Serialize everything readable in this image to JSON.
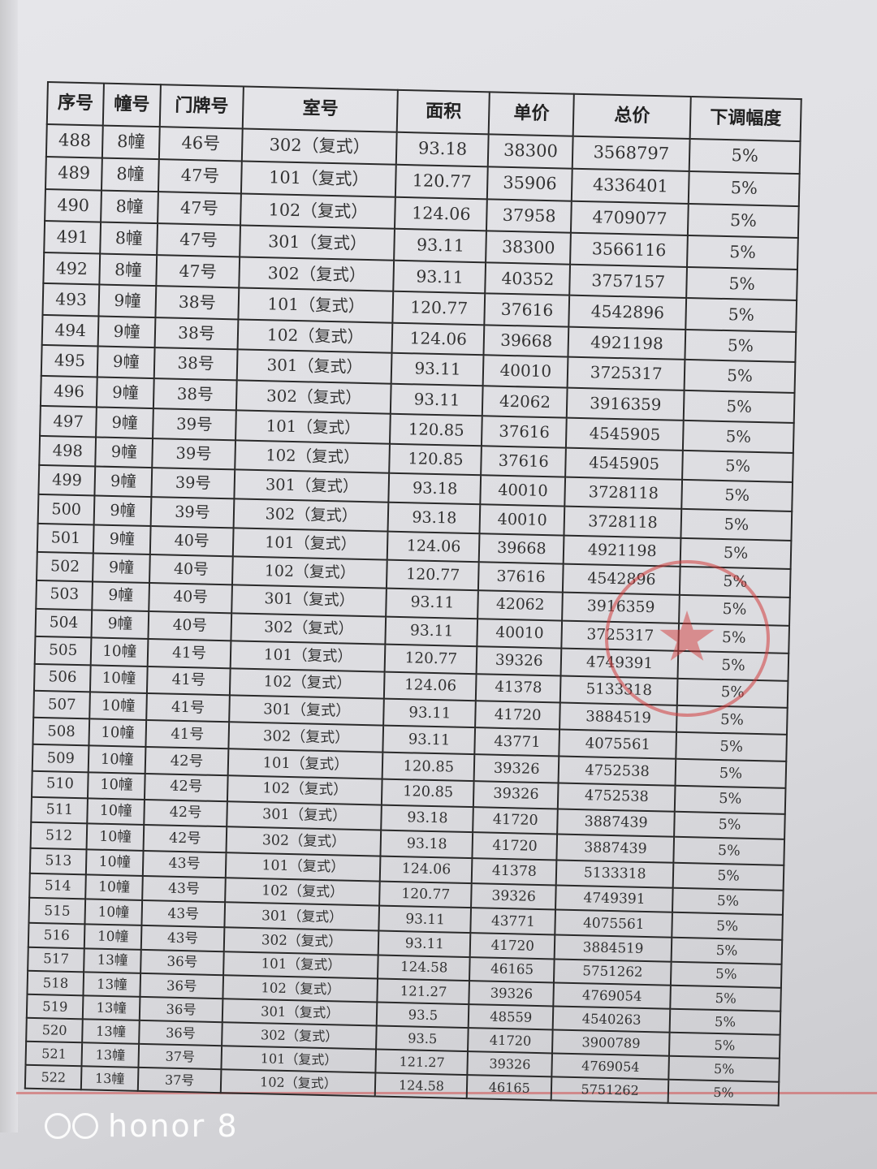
{
  "table": {
    "headers": [
      "序号",
      "幢号",
      "门牌号",
      "室号",
      "面积",
      "单价",
      "总价",
      "下调幅度"
    ],
    "rows": [
      [
        "488",
        "8幢",
        "46号",
        "302（复式）",
        "93.18",
        "38300",
        "3568797",
        "5%"
      ],
      [
        "489",
        "8幢",
        "47号",
        "101（复式）",
        "120.77",
        "35906",
        "4336401",
        "5%"
      ],
      [
        "490",
        "8幢",
        "47号",
        "102（复式）",
        "124.06",
        "37958",
        "4709077",
        "5%"
      ],
      [
        "491",
        "8幢",
        "47号",
        "301（复式）",
        "93.11",
        "38300",
        "3566116",
        "5%"
      ],
      [
        "492",
        "8幢",
        "47号",
        "302（复式）",
        "93.11",
        "40352",
        "3757157",
        "5%"
      ],
      [
        "493",
        "9幢",
        "38号",
        "101（复式）",
        "120.77",
        "37616",
        "4542896",
        "5%"
      ],
      [
        "494",
        "9幢",
        "38号",
        "102（复式）",
        "124.06",
        "39668",
        "4921198",
        "5%"
      ],
      [
        "495",
        "9幢",
        "38号",
        "301（复式）",
        "93.11",
        "40010",
        "3725317",
        "5%"
      ],
      [
        "496",
        "9幢",
        "38号",
        "302（复式）",
        "93.11",
        "42062",
        "3916359",
        "5%"
      ],
      [
        "497",
        "9幢",
        "39号",
        "101（复式）",
        "120.85",
        "37616",
        "4545905",
        "5%"
      ],
      [
        "498",
        "9幢",
        "39号",
        "102（复式）",
        "120.85",
        "37616",
        "4545905",
        "5%"
      ],
      [
        "499",
        "9幢",
        "39号",
        "301（复式）",
        "93.18",
        "40010",
        "3728118",
        "5%"
      ],
      [
        "500",
        "9幢",
        "39号",
        "302（复式）",
        "93.18",
        "40010",
        "3728118",
        "5%"
      ],
      [
        "501",
        "9幢",
        "40号",
        "101（复式）",
        "124.06",
        "39668",
        "4921198",
        "5%"
      ],
      [
        "502",
        "9幢",
        "40号",
        "102（复式）",
        "120.77",
        "37616",
        "4542896",
        "5%"
      ],
      [
        "503",
        "9幢",
        "40号",
        "301（复式）",
        "93.11",
        "42062",
        "3916359",
        "5%"
      ],
      [
        "504",
        "9幢",
        "40号",
        "302（复式）",
        "93.11",
        "40010",
        "3725317",
        "5%"
      ],
      [
        "505",
        "10幢",
        "41号",
        "101（复式）",
        "120.77",
        "39326",
        "4749391",
        "5%"
      ],
      [
        "506",
        "10幢",
        "41号",
        "102（复式）",
        "124.06",
        "41378",
        "5133318",
        "5%"
      ],
      [
        "507",
        "10幢",
        "41号",
        "301（复式）",
        "93.11",
        "41720",
        "3884519",
        "5%"
      ],
      [
        "508",
        "10幢",
        "41号",
        "302（复式）",
        "93.11",
        "43771",
        "4075561",
        "5%"
      ],
      [
        "509",
        "10幢",
        "42号",
        "101（复式）",
        "120.85",
        "39326",
        "4752538",
        "5%"
      ],
      [
        "510",
        "10幢",
        "42号",
        "102（复式）",
        "120.85",
        "39326",
        "4752538",
        "5%"
      ],
      [
        "511",
        "10幢",
        "42号",
        "301（复式）",
        "93.18",
        "41720",
        "3887439",
        "5%"
      ],
      [
        "512",
        "10幢",
        "42号",
        "302（复式）",
        "93.18",
        "41720",
        "3887439",
        "5%"
      ],
      [
        "513",
        "10幢",
        "43号",
        "101（复式）",
        "124.06",
        "41378",
        "5133318",
        "5%"
      ],
      [
        "514",
        "10幢",
        "43号",
        "102（复式）",
        "120.77",
        "39326",
        "4749391",
        "5%"
      ],
      [
        "515",
        "10幢",
        "43号",
        "301（复式）",
        "93.11",
        "43771",
        "4075561",
        "5%"
      ],
      [
        "516",
        "10幢",
        "43号",
        "302（复式）",
        "93.11",
        "41720",
        "3884519",
        "5%"
      ],
      [
        "517",
        "13幢",
        "36号",
        "101（复式）",
        "124.58",
        "46165",
        "5751262",
        "5%"
      ],
      [
        "518",
        "13幢",
        "36号",
        "102（复式）",
        "121.27",
        "39326",
        "4769054",
        "5%"
      ],
      [
        "519",
        "13幢",
        "36号",
        "301（复式）",
        "93.5",
        "48559",
        "4540263",
        "5%"
      ],
      [
        "520",
        "13幢",
        "36号",
        "302（复式）",
        "93.5",
        "41720",
        "3900789",
        "5%"
      ],
      [
        "521",
        "13幢",
        "37号",
        "101（复式）",
        "121.27",
        "39326",
        "4769054",
        "5%"
      ],
      [
        "522",
        "13幢",
        "37号",
        "102（复式）",
        "124.58",
        "46165",
        "5751262",
        "5%"
      ]
    ]
  },
  "stamp": {
    "icon": "star-icon",
    "color": "#d23c3c"
  },
  "watermark": {
    "text": "honor 8"
  }
}
